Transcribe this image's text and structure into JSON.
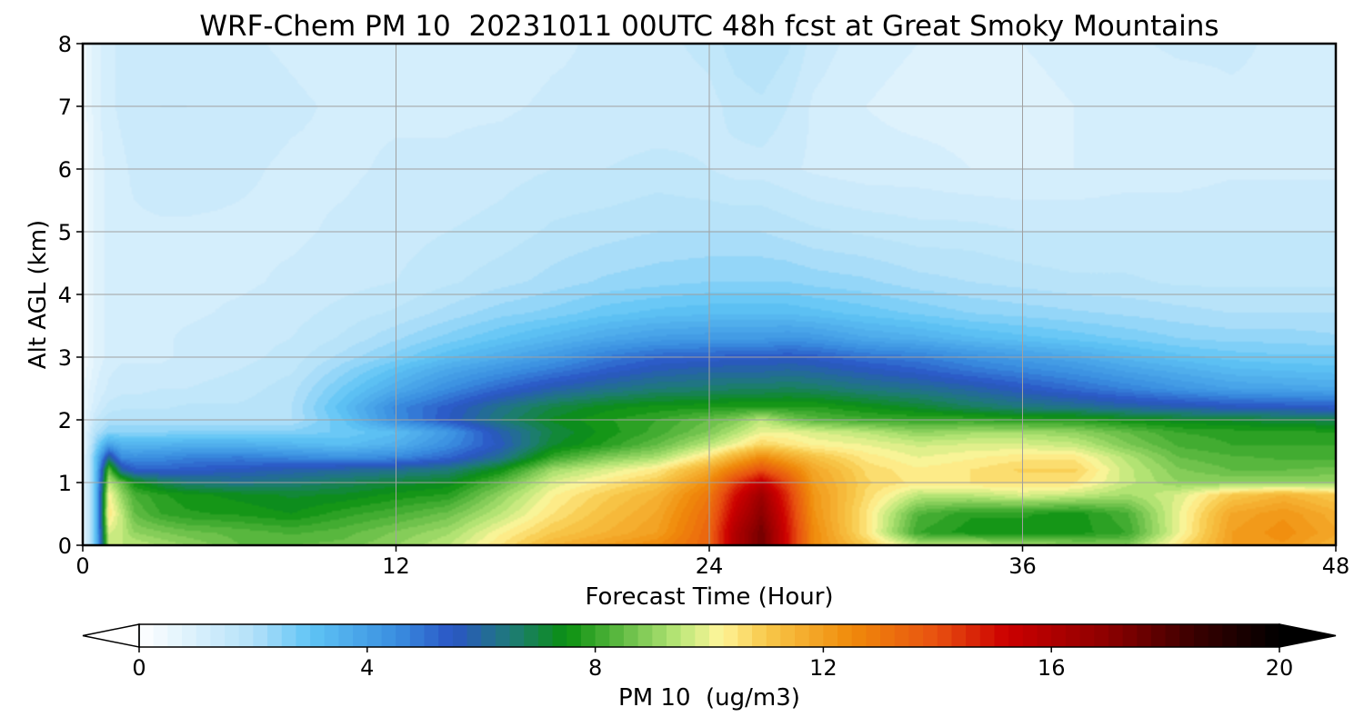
{
  "chart_data": {
    "type": "heatmap",
    "title": "WRF-Chem PM 10  20231011 00UTC 48h fcst at Great Smoky Mountains",
    "xlabel": "Forecast Time (Hour)",
    "ylabel": "Alt AGL (km)",
    "xlim": [
      0,
      48
    ],
    "ylim": [
      0,
      8
    ],
    "x_ticks": [
      "0",
      "12",
      "24",
      "36",
      "48"
    ],
    "y_ticks": [
      "0",
      "1",
      "2",
      "3",
      "4",
      "5",
      "6",
      "7",
      "8"
    ],
    "grid": true,
    "colorbar": {
      "label": "PM 10  (ug/m3)",
      "range": [
        0,
        20
      ],
      "extend": "both",
      "ticks": [
        "0",
        "4",
        "8",
        "12",
        "16",
        "20"
      ],
      "colors": [
        [
          0,
          "#ffffff"
        ],
        [
          2,
          "#b3e1f9"
        ],
        [
          3,
          "#5fc4f5"
        ],
        [
          4.5,
          "#3a8fe0"
        ],
        [
          5.5,
          "#2a55c5"
        ],
        [
          6.5,
          "#1f7a7a"
        ],
        [
          7.5,
          "#0a9010"
        ],
        [
          9.5,
          "#bde87a"
        ],
        [
          10.2,
          "#fff59a"
        ],
        [
          11,
          "#f8c84a"
        ],
        [
          12.5,
          "#f08a0a"
        ],
        [
          14,
          "#e85010"
        ],
        [
          15.2,
          "#cc0000"
        ],
        [
          17,
          "#8c0000"
        ],
        [
          18.5,
          "#3a0000"
        ],
        [
          20,
          "#000000"
        ]
      ]
    },
    "field": {
      "x": [
        0,
        0.5,
        1,
        1.5,
        2,
        3,
        4,
        6,
        8,
        10,
        12,
        14,
        16,
        18,
        20,
        22,
        24,
        25,
        26,
        27,
        28,
        30,
        32,
        34,
        36,
        38,
        40,
        42,
        44,
        46,
        48
      ],
      "y": [
        0,
        0.2,
        0.5,
        0.8,
        1.0,
        1.2,
        1.4,
        1.6,
        1.8,
        2.0,
        2.2,
        2.5,
        2.8,
        3.0,
        3.3,
        3.7,
        4.2,
        5.0,
        6.0,
        7.0,
        8.0
      ],
      "z": [
        [
          0.5,
          3,
          9.5,
          9.5,
          9.5,
          9.2,
          9.0,
          8.5,
          8.5,
          8.6,
          9,
          9.5,
          10.5,
          11.5,
          12,
          12.5,
          13.5,
          16,
          17.5,
          15,
          12.5,
          11,
          9.5,
          9.5,
          9.2,
          9.0,
          8.8,
          10.5,
          12,
          12.2,
          11.5
        ],
        [
          0.5,
          3,
          9.8,
          9.5,
          9.0,
          8.8,
          8.6,
          8.4,
          8.2,
          8.4,
          8.8,
          9.2,
          10.2,
          11,
          11.5,
          12,
          13.5,
          16,
          17.5,
          15,
          12.5,
          10.5,
          8.0,
          7.6,
          7.6,
          7.6,
          8.0,
          10.0,
          12,
          12.4,
          11.8
        ],
        [
          0.5,
          3,
          10.5,
          9.5,
          8.5,
          8.0,
          7.8,
          7.7,
          7.5,
          7.9,
          8.2,
          8.6,
          9.5,
          10.5,
          11.2,
          11.8,
          13.3,
          15.5,
          17,
          14.8,
          12.3,
          10.5,
          8.3,
          7.8,
          7.8,
          7.6,
          8.2,
          10.0,
          11.8,
          12.2,
          11.6
        ],
        [
          0.5,
          3,
          10.2,
          9.0,
          8.2,
          7.8,
          7.6,
          7.4,
          7.2,
          7.3,
          7.6,
          7.8,
          9.0,
          10.2,
          10.9,
          11.5,
          13.0,
          15.0,
          16.5,
          14.5,
          12.2,
          10.7,
          9.5,
          9.5,
          9.8,
          9.6,
          9.2,
          9.8,
          11.0,
          11.5,
          11.0
        ],
        [
          0.5,
          3,
          9.5,
          8.5,
          7.5,
          6.9,
          6.5,
          6.3,
          6.5,
          6.8,
          7.1,
          7.3,
          8.4,
          9.8,
          10.4,
          11.0,
          12.5,
          14.3,
          15.5,
          14.0,
          12.0,
          10.8,
          10.4,
          10.5,
          10.6,
          10.5,
          9.6,
          9.0,
          9.0,
          9.0,
          9.0
        ],
        [
          0.5,
          3,
          8.5,
          6.0,
          5.4,
          5.3,
          5.4,
          5.6,
          5.8,
          6.0,
          6.2,
          6.5,
          7.5,
          9.2,
          9.8,
          10.4,
          11.8,
          13.0,
          14.0,
          13.0,
          11.8,
          10.7,
          10.3,
          10.5,
          10.8,
          10.8,
          9.6,
          8.8,
          8.5,
          8.5,
          8.6
        ],
        [
          0.5,
          3,
          6.2,
          4.5,
          4.4,
          4.5,
          4.7,
          4.8,
          4.6,
          4.4,
          4.6,
          5.2,
          6.2,
          8.0,
          8.8,
          9.3,
          10.6,
          11.6,
          12.5,
          11.8,
          11.2,
          10.4,
          10.0,
          10.2,
          10.4,
          10.4,
          9.4,
          8.5,
          8.3,
          8.2,
          8.2
        ],
        [
          0.5,
          2.5,
          4.0,
          3.5,
          3.5,
          3.5,
          3.6,
          3.6,
          3.4,
          3.2,
          3.6,
          4.5,
          5.6,
          7.2,
          7.8,
          8.5,
          9.5,
          10.1,
          10.8,
          10.5,
          10.2,
          10.0,
          9.7,
          9.8,
          9.8,
          9.6,
          8.8,
          8.2,
          8.0,
          8.0,
          8.0
        ],
        [
          0.5,
          2.0,
          2.5,
          2.5,
          2.5,
          2.5,
          2.6,
          2.6,
          2.6,
          2.8,
          3.2,
          4.2,
          5.8,
          7.0,
          7.6,
          8.1,
          8.8,
          9.4,
          10.0,
          10.0,
          9.8,
          9.5,
          9.0,
          9.2,
          9.2,
          9.0,
          8.5,
          8.0,
          7.9,
          7.8,
          7.8
        ],
        [
          0.5,
          1.5,
          2.0,
          2.0,
          2.0,
          2.0,
          2.0,
          2.0,
          2.0,
          3.0,
          4.5,
          5.5,
          6.5,
          7.3,
          7.7,
          8.0,
          8.5,
          8.8,
          9.5,
          8.8,
          8.4,
          8.1,
          8.0,
          8.0,
          7.8,
          7.8,
          7.5,
          7.3,
          7.2,
          7.0,
          6.9
        ],
        [
          0.5,
          1.2,
          1.6,
          1.7,
          1.7,
          1.7,
          1.8,
          1.8,
          2.0,
          3.2,
          4.6,
          5.4,
          6.3,
          7.0,
          7.4,
          7.6,
          7.7,
          7.8,
          7.8,
          7.8,
          7.8,
          7.5,
          7.2,
          6.8,
          6.5,
          6.3,
          6.0,
          5.8,
          5.6,
          5.5,
          5.4
        ],
        [
          0.5,
          1.0,
          1.3,
          1.4,
          1.4,
          1.5,
          1.5,
          1.6,
          1.9,
          2.8,
          3.7,
          4.5,
          5.2,
          5.8,
          6.2,
          6.5,
          6.6,
          6.7,
          6.7,
          6.8,
          6.7,
          6.4,
          6.2,
          5.9,
          5.5,
          5.1,
          4.7,
          4.3,
          4.0,
          3.9,
          3.8
        ],
        [
          0.3,
          0.9,
          1.2,
          1.3,
          1.3,
          1.3,
          1.4,
          1.5,
          1.7,
          2.4,
          3.1,
          3.8,
          4.3,
          4.8,
          5.3,
          5.7,
          5.9,
          5.9,
          5.9,
          6.0,
          5.9,
          5.6,
          5.3,
          4.9,
          4.6,
          4.3,
          3.9,
          3.6,
          3.3,
          3.2,
          3.1
        ],
        [
          0.3,
          0.8,
          1.1,
          1.2,
          1.2,
          1.2,
          1.3,
          1.4,
          1.6,
          2.1,
          2.6,
          3.2,
          3.7,
          4.2,
          4.8,
          5.2,
          5.3,
          5.4,
          5.4,
          5.5,
          5.4,
          5.0,
          4.8,
          4.4,
          4.1,
          3.8,
          3.4,
          3.1,
          2.9,
          2.8,
          2.8
        ],
        [
          0.3,
          0.8,
          1.1,
          1.2,
          1.2,
          1.2,
          1.3,
          1.4,
          1.5,
          1.8,
          2.2,
          2.6,
          3.0,
          3.4,
          3.8,
          4.1,
          4.2,
          4.2,
          4.2,
          4.3,
          4.2,
          3.8,
          3.6,
          3.3,
          3.1,
          2.9,
          2.7,
          2.5,
          2.4,
          2.4,
          2.3
        ],
        [
          0.3,
          0.8,
          1.1,
          1.2,
          1.2,
          1.2,
          1.2,
          1.3,
          1.4,
          1.6,
          1.8,
          2.1,
          2.4,
          2.6,
          2.9,
          3.1,
          3.2,
          3.2,
          3.2,
          3.2,
          3.1,
          2.9,
          2.7,
          2.5,
          2.4,
          2.3,
          2.2,
          2.1,
          2.0,
          2.0,
          2.0
        ],
        [
          0.3,
          0.8,
          1.1,
          1.2,
          1.2,
          1.2,
          1.2,
          1.2,
          1.3,
          1.4,
          1.5,
          1.7,
          1.9,
          2.1,
          2.3,
          2.4,
          2.5,
          2.5,
          2.5,
          2.5,
          2.4,
          2.3,
          2.1,
          2.0,
          1.9,
          1.8,
          1.8,
          1.7,
          1.7,
          1.7,
          1.7
        ],
        [
          0.3,
          0.8,
          1.1,
          1.2,
          1.2,
          1.2,
          1.2,
          1.2,
          1.2,
          1.3,
          1.4,
          1.5,
          1.6,
          1.8,
          1.9,
          2.0,
          2.0,
          2.0,
          2.0,
          1.9,
          1.8,
          1.7,
          1.6,
          1.6,
          1.5,
          1.5,
          1.5,
          1.5,
          1.5,
          1.5,
          1.5
        ],
        [
          0.3,
          0.8,
          1.1,
          1.2,
          1.3,
          1.4,
          1.4,
          1.3,
          1.2,
          1.2,
          1.3,
          1.3,
          1.4,
          1.5,
          1.5,
          1.6,
          1.5,
          1.4,
          1.4,
          1.3,
          1.2,
          1.1,
          1.1,
          1.0,
          1.0,
          1.0,
          1.1,
          1.1,
          1.2,
          1.2,
          1.2
        ],
        [
          0.3,
          0.9,
          1.2,
          1.3,
          1.4,
          1.5,
          1.5,
          1.4,
          1.3,
          1.2,
          1.2,
          1.2,
          1.2,
          1.3,
          1.3,
          1.3,
          1.4,
          1.6,
          1.7,
          1.5,
          1.2,
          1.0,
          0.9,
          0.9,
          0.9,
          1.0,
          1.1,
          1.1,
          1.2,
          1.2,
          1.1
        ],
        [
          0.3,
          0.9,
          1.2,
          1.3,
          1.3,
          1.4,
          1.4,
          1.3,
          1.2,
          1.1,
          1.0,
          1.0,
          1.1,
          1.2,
          1.3,
          1.4,
          1.6,
          1.9,
          2.0,
          1.8,
          1.4,
          1.1,
          1.0,
          1.0,
          1.0,
          1.1,
          1.2,
          1.3,
          1.3,
          1.2,
          1.1
        ]
      ]
    }
  }
}
